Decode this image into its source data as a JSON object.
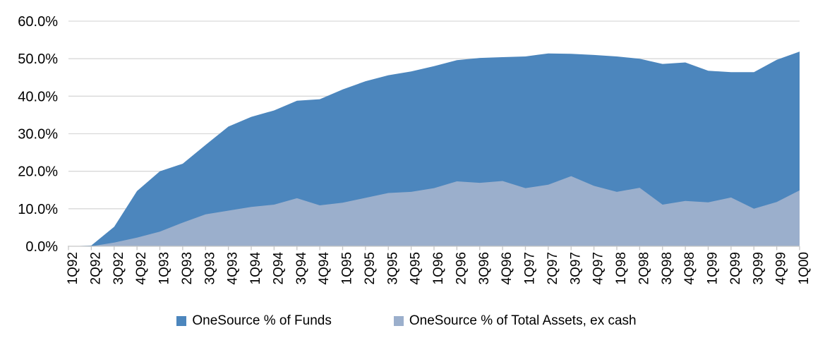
{
  "chart_data": {
    "type": "area",
    "title": "",
    "xlabel": "",
    "ylabel": "",
    "categories": [
      "1Q92",
      "2Q92",
      "3Q92",
      "4Q92",
      "1Q93",
      "2Q93",
      "3Q93",
      "4Q93",
      "1Q94",
      "2Q94",
      "3Q94",
      "4Q94",
      "1Q95",
      "2Q95",
      "3Q95",
      "4Q95",
      "1Q96",
      "2Q96",
      "3Q96",
      "4Q96",
      "1Q97",
      "2Q97",
      "3Q97",
      "4Q97",
      "1Q98",
      "2Q98",
      "3Q98",
      "4Q98",
      "1Q99",
      "2Q99",
      "3Q99",
      "4Q99",
      "1Q00"
    ],
    "series": [
      {
        "name": "OneSource % of Funds",
        "color": "#4C86BD",
        "values": [
          0.0,
          0.2,
          5.2,
          14.7,
          20.0,
          22.0,
          27.0,
          31.9,
          34.5,
          36.2,
          38.8,
          39.2,
          41.8,
          44.0,
          45.6,
          46.6,
          48.0,
          49.6,
          50.2,
          50.4,
          50.6,
          51.4,
          51.3,
          51.0,
          50.6,
          50.0,
          48.6,
          49.0,
          46.8,
          46.4,
          46.4,
          49.7,
          51.9
        ]
      },
      {
        "name": "OneSource % of Total Assets, ex cash",
        "color": "#9BAFCC",
        "values": [
          0.0,
          0.0,
          1.0,
          2.3,
          3.9,
          6.3,
          8.5,
          9.5,
          10.5,
          11.1,
          12.8,
          10.9,
          11.6,
          12.9,
          14.2,
          14.5,
          15.5,
          17.3,
          16.9,
          17.4,
          15.5,
          16.4,
          18.7,
          16.1,
          14.5,
          15.6,
          11.1,
          12.1,
          11.7,
          13.0,
          10.0,
          11.8,
          14.9
        ]
      }
    ],
    "ylim": [
      0,
      60
    ],
    "y_tick_step": 10,
    "y_tick_labels": [
      "0.0%",
      "10.0%",
      "20.0%",
      "30.0%",
      "40.0%",
      "50.0%",
      "60.0%"
    ],
    "grid": true,
    "legend_position": "bottom",
    "colors": {
      "gridline": "#D9D9D9",
      "axis": "#C6C6C6",
      "text": "#000000",
      "background": "#FFFFFF"
    }
  }
}
